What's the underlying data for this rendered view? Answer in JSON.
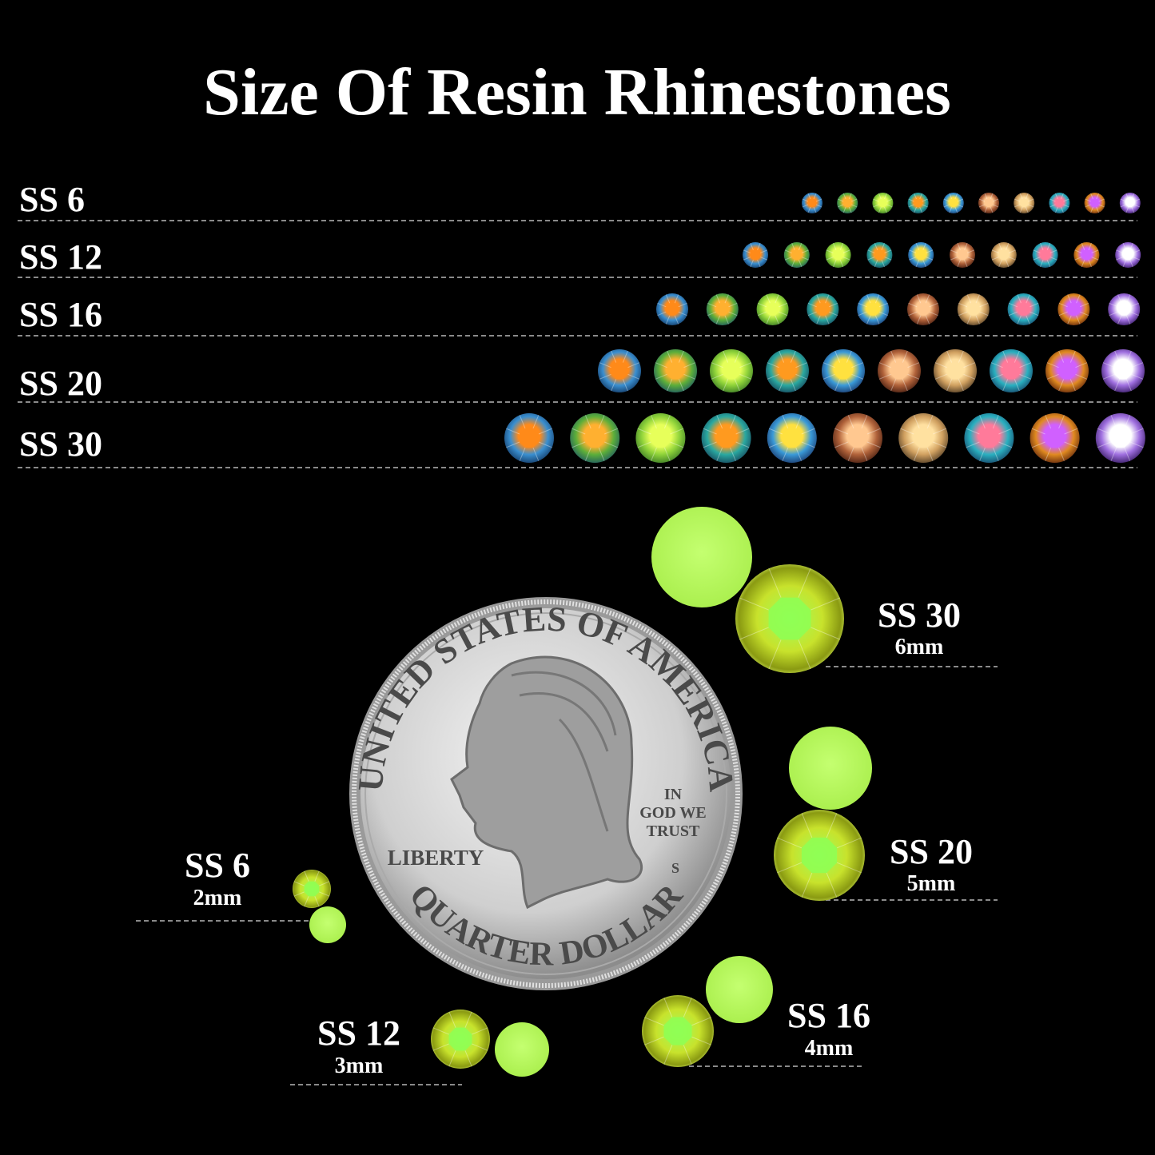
{
  "header": {
    "title": "Size Of Resin Rhinestones"
  },
  "size_rows": [
    {
      "label": "SS 6"
    },
    {
      "label": "SS 12"
    },
    {
      "label": "SS 16"
    },
    {
      "label": "SS 20"
    },
    {
      "label": "SS 30"
    }
  ],
  "coin": {
    "top_text": "UNITED STATES OF AMERICA",
    "motto": [
      "IN",
      "GOD WE",
      "TRUST"
    ],
    "left_text": "LIBERTY",
    "mint_mark": "S",
    "bottom_text": "QUARTER DOLLAR"
  },
  "callouts": [
    {
      "size": "SS 30",
      "diameter": "6mm"
    },
    {
      "size": "SS 20",
      "diameter": "5mm"
    },
    {
      "size": "SS 16",
      "diameter": "4mm"
    },
    {
      "size": "SS 12",
      "diameter": "3mm"
    },
    {
      "size": "SS 6",
      "diameter": "2mm"
    }
  ]
}
